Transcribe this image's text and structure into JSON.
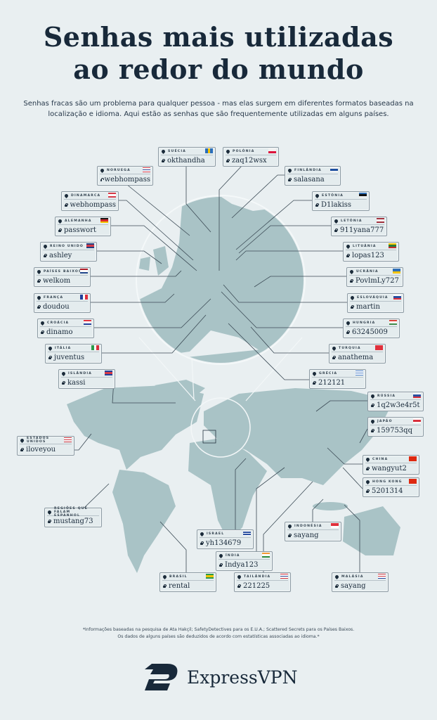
{
  "title_line1": "Senhas mais utilizadas",
  "title_line2": "ao redor do mundo",
  "subtitle": "Senhas fracas são um problema para qualquer pessoa - mas elas surgem em diferentes formatos baseadas na localização e idioma. Aqui estão as senhas que são frequentemente utilizadas em alguns países.",
  "colors": {
    "background": "#e9eff1",
    "land": "#a9c3c6",
    "text": "#18293a"
  },
  "icons": {
    "location": "map-pin-icon",
    "password": "lock-icon"
  },
  "countries": [
    {
      "id": "suecia",
      "country": "Suécia",
      "password": "okthandha",
      "flag": {
        "dir": "v",
        "colors": [
          "#2a6ebb",
          "#f5c400",
          "#2a6ebb"
        ]
      }
    },
    {
      "id": "polonia",
      "country": "Polônia",
      "password": "zaq12wsx",
      "flag": {
        "dir": "h",
        "colors": [
          "#f1f1f1",
          "#dc143c"
        ]
      }
    },
    {
      "id": "noruega",
      "country": "Noruega",
      "password": "webhompass",
      "flag": {
        "dir": "h",
        "colors": [
          "#d63a48",
          "#ffffff",
          "#2a3f8f",
          "#ffffff",
          "#d63a48"
        ]
      }
    },
    {
      "id": "finlandia",
      "country": "Finlândia",
      "password": "salasana",
      "flag": {
        "dir": "h",
        "colors": [
          "#f4f4f4",
          "#1e4fa0",
          "#f4f4f4"
        ]
      }
    },
    {
      "id": "dinamarca",
      "country": "Dinamarca",
      "password": "webhompass",
      "flag": {
        "dir": "h",
        "colors": [
          "#d63a48",
          "#ffffff",
          "#d63a48"
        ]
      }
    },
    {
      "id": "estonia",
      "country": "Estônia",
      "password": "D1lakiss",
      "flag": {
        "dir": "h",
        "colors": [
          "#2f6fb6",
          "#111111",
          "#f4f4f4"
        ]
      }
    },
    {
      "id": "alemanha",
      "country": "Alemanha",
      "password": "passwort",
      "flag": {
        "dir": "h",
        "colors": [
          "#111111",
          "#d8262c",
          "#f4c400"
        ]
      }
    },
    {
      "id": "letonia",
      "country": "Letônia",
      "password": "911yana777",
      "flag": {
        "dir": "h",
        "colors": [
          "#a0303c",
          "#ffffff",
          "#a0303c"
        ]
      }
    },
    {
      "id": "reino-unido",
      "country": "Reino Unido",
      "password": "ashley",
      "flag": {
        "dir": "h",
        "colors": [
          "#22407f",
          "#d63a48",
          "#22407f"
        ]
      }
    },
    {
      "id": "lituania",
      "country": "Lituânia",
      "password": "lopas123",
      "flag": {
        "dir": "h",
        "colors": [
          "#f4c400",
          "#2a7a3a",
          "#c62d2d"
        ]
      }
    },
    {
      "id": "paises-baixos",
      "country": "Países Baixos",
      "password": "welkom",
      "flag": {
        "dir": "h",
        "colors": [
          "#ae1c28",
          "#ffffff",
          "#21468b"
        ]
      }
    },
    {
      "id": "ucrania",
      "country": "Ucrânia",
      "password": "PovlmLy727",
      "flag": {
        "dir": "h",
        "colors": [
          "#2f6fb6",
          "#f4c400"
        ]
      }
    },
    {
      "id": "franca",
      "country": "França",
      "password": "doudou",
      "flag": {
        "dir": "v",
        "colors": [
          "#22409a",
          "#ffffff",
          "#e0303c"
        ]
      }
    },
    {
      "id": "eslovaquia",
      "country": "Eslováquia",
      "password": "martin",
      "flag": {
        "dir": "h",
        "colors": [
          "#ffffff",
          "#2a4fa0",
          "#e0303c"
        ]
      }
    },
    {
      "id": "croacia",
      "country": "Croácia",
      "password": "dinamo",
      "flag": {
        "dir": "h",
        "colors": [
          "#e0303c",
          "#ffffff",
          "#22409a"
        ]
      }
    },
    {
      "id": "hungria",
      "country": "Hungria",
      "password": "63245009",
      "flag": {
        "dir": "h",
        "colors": [
          "#d8443a",
          "#ffffff",
          "#3e8a4a"
        ]
      }
    },
    {
      "id": "italia",
      "country": "Itália",
      "password": "juventus",
      "flag": {
        "dir": "v",
        "colors": [
          "#2a9a4a",
          "#ffffff",
          "#d8303c"
        ]
      }
    },
    {
      "id": "turquia",
      "country": "Turquia",
      "password": "anathema",
      "flag": {
        "dir": "h",
        "colors": [
          "#e0303c"
        ]
      }
    },
    {
      "id": "islandia",
      "country": "Islândia",
      "password": "kassi",
      "flag": {
        "dir": "h",
        "colors": [
          "#22409a",
          "#d63a48",
          "#22409a"
        ]
      }
    },
    {
      "id": "grecia",
      "country": "Grécia",
      "password": "212121",
      "flag": {
        "dir": "h",
        "colors": [
          "#4a7fc8",
          "#ffffff",
          "#4a7fc8",
          "#ffffff",
          "#4a7fc8"
        ]
      }
    },
    {
      "id": "russia",
      "country": "Rússia",
      "password": "1q2w3e4r5t",
      "flag": {
        "dir": "h",
        "colors": [
          "#ffffff",
          "#2a4fa0",
          "#d8303c"
        ]
      }
    },
    {
      "id": "estados-unidos",
      "country": "Estados Unidos",
      "password": "iloveyou",
      "flag": {
        "dir": "h",
        "colors": [
          "#c8303c",
          "#ffffff",
          "#c8303c",
          "#ffffff",
          "#c8303c"
        ]
      }
    },
    {
      "id": "japao",
      "country": "Japão",
      "password": "159753qq",
      "flag": {
        "dir": "h",
        "colors": [
          "#ffffff",
          "#d8303c",
          "#ffffff"
        ]
      }
    },
    {
      "id": "china",
      "country": "China",
      "password": "wangyut2",
      "flag": {
        "dir": "h",
        "colors": [
          "#de2910"
        ]
      }
    },
    {
      "id": "hong-kong",
      "country": "Hong Kong",
      "password": "5201314",
      "flag": {
        "dir": "h",
        "colors": [
          "#de2910"
        ]
      }
    },
    {
      "id": "regioes-espanhol",
      "country": "Regiões que falam espanhol",
      "password": "mustang73",
      "flag": null
    },
    {
      "id": "indonesia",
      "country": "Indonésia",
      "password": "sayang",
      "flag": {
        "dir": "h",
        "colors": [
          "#e0303c",
          "#ffffff"
        ]
      }
    },
    {
      "id": "israel",
      "country": "Israel",
      "password": "yh134679",
      "flag": {
        "dir": "h",
        "colors": [
          "#ffffff",
          "#2a4fa0",
          "#ffffff",
          "#2a4fa0",
          "#ffffff"
        ]
      }
    },
    {
      "id": "india",
      "country": "Índia",
      "password": "Indya123",
      "flag": {
        "dir": "h",
        "colors": [
          "#f49a33",
          "#ffffff",
          "#2a8a3a"
        ]
      }
    },
    {
      "id": "brasil",
      "country": "Brasil",
      "password": "rental",
      "flag": {
        "dir": "h",
        "colors": [
          "#2a9a4a",
          "#f4c400",
          "#2a9a4a"
        ]
      }
    },
    {
      "id": "tailandia",
      "country": "Tailândia",
      "password": "221225",
      "flag": {
        "dir": "h",
        "colors": [
          "#d8303c",
          "#ffffff",
          "#2a3f8f",
          "#ffffff",
          "#d8303c"
        ]
      }
    },
    {
      "id": "malasia",
      "country": "Malásia",
      "password": "sayang",
      "flag": {
        "dir": "h",
        "colors": [
          "#c8303c",
          "#ffffff",
          "#c8303c",
          "#ffffff",
          "#22409a"
        ]
      }
    }
  ],
  "footnote_line1": "*Informações baseadas na pesquisa de Ata Hakçil; SafetyDetectives para os E.U.A.; Scattered Secrets para os Países Baixos.",
  "footnote_line2": "Os dados de alguns países são deduzidos de acordo com estatísticas associadas ao idioma.*",
  "brand": "ExpressVPN"
}
